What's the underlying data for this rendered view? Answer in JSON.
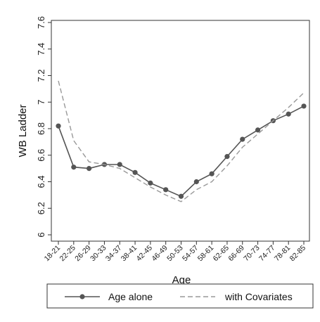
{
  "chart_data": {
    "type": "line",
    "xlabel": "Age",
    "ylabel": "WB Ladder",
    "categories": [
      "18-21",
      "22-25",
      "26-29",
      "30-33",
      "34-37",
      "38-41",
      "42-45",
      "46-49",
      "50-53",
      "54-57",
      "58-61",
      "62-65",
      "66-69",
      "70-73",
      "74-77",
      "78-81",
      "82-85"
    ],
    "ylim": [
      6,
      7.6
    ],
    "yticks": [
      "6",
      "6.2",
      "6.4",
      "6.6",
      "6.8",
      "7",
      "7.2",
      "7.4",
      "7.6"
    ],
    "grid": false,
    "legend_position": "bottom",
    "series": [
      {
        "name": "Age alone",
        "style": "solid-with-markers",
        "color": "#555555",
        "values": [
          6.82,
          6.51,
          6.5,
          6.53,
          6.53,
          6.47,
          6.39,
          6.34,
          6.29,
          6.4,
          6.46,
          6.59,
          6.72,
          6.79,
          6.86,
          6.91,
          6.97
        ]
      },
      {
        "name": "with Covariates",
        "style": "dashed",
        "color": "#999999",
        "values": [
          7.16,
          6.71,
          6.55,
          6.53,
          6.5,
          6.43,
          6.36,
          6.3,
          6.25,
          6.34,
          6.4,
          6.52,
          6.66,
          6.76,
          6.86,
          6.96,
          7.07
        ]
      }
    ]
  }
}
